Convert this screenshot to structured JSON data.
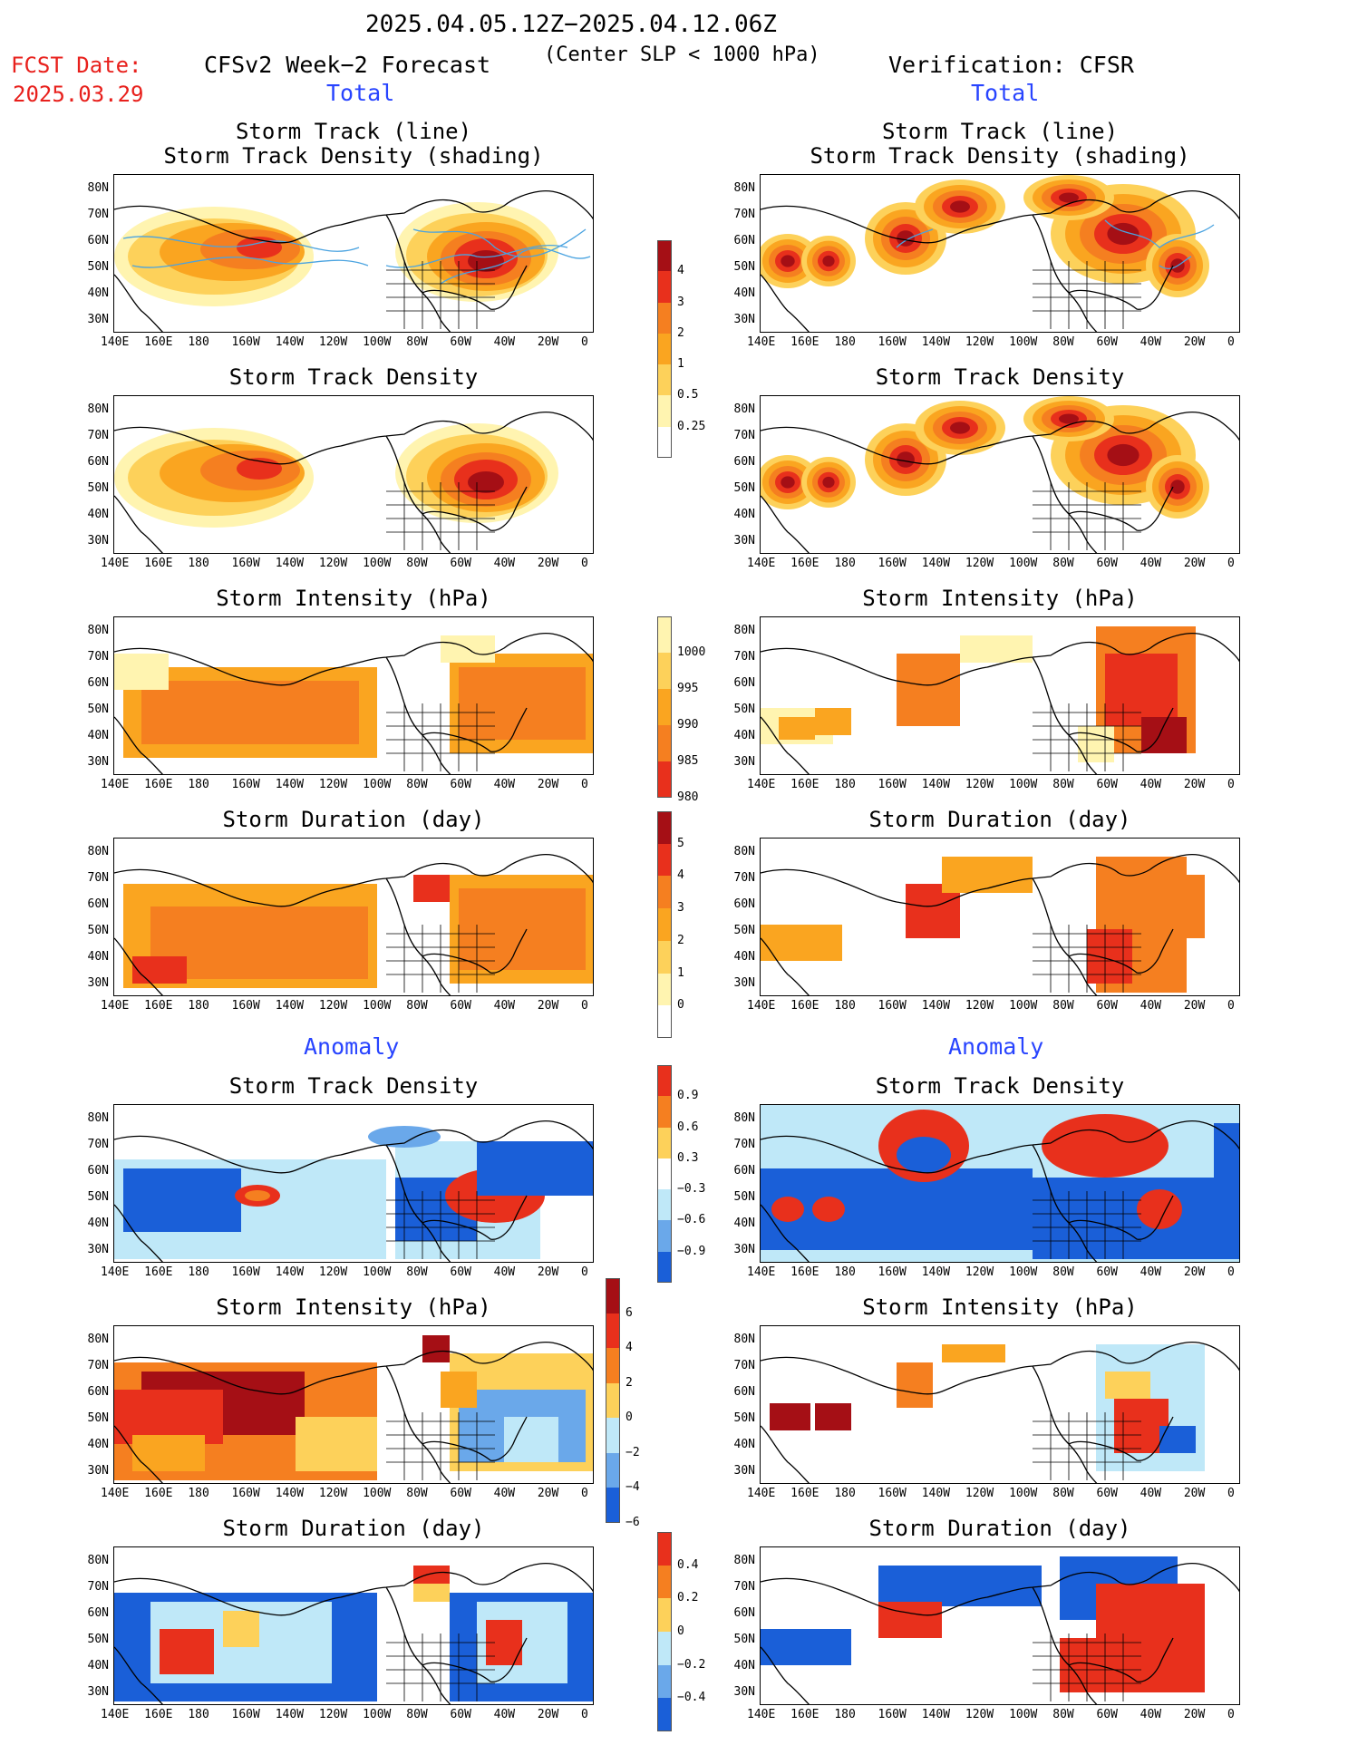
{
  "header": {
    "period": "2025.04.05.12Z−2025.04.12.06Z",
    "criterion": "(Center SLP < 1000 hPa)",
    "fcst_label": "FCST Date:",
    "fcst_date": "2025.03.29",
    "left_title": "CFSv2 Week−2 Forecast",
    "right_title": "Verification: CFSR",
    "total_label": "Total",
    "anomaly_label": "Anomaly"
  },
  "panel_titles": {
    "track": [
      "Storm Track (line)",
      "Storm Track Density (shading)"
    ],
    "density": "Storm Track Density",
    "intensity": "Storm Intensity (hPa)",
    "duration": "Storm Duration (day)"
  },
  "axes": {
    "lat_labels": [
      "80N",
      "70N",
      "60N",
      "50N",
      "40N",
      "30N"
    ],
    "lon_labels": [
      "140E",
      "160E",
      "180",
      "160W",
      "140W",
      "120W",
      "100W",
      "80W",
      "60W",
      "40W",
      "20W",
      "0"
    ]
  },
  "colorbars": {
    "density_total": [
      "4",
      "3",
      "2",
      "1",
      "0.5",
      "0.25"
    ],
    "intensity_total": [
      "1000",
      "995",
      "990",
      "985",
      "980"
    ],
    "duration_total": [
      "5",
      "4",
      "3",
      "2",
      "1",
      "0"
    ],
    "density_anom": [
      "0.9",
      "0.6",
      "0.3",
      "−0.3",
      "−0.6",
      "−0.9"
    ],
    "intensity_anom": [
      "6",
      "4",
      "2",
      "0",
      "−2",
      "−4",
      "−6"
    ],
    "duration_anom": [
      "0.4",
      "0.2",
      "0",
      "−0.2",
      "−0.4"
    ]
  },
  "colors": {
    "dark_red": "#a50f15",
    "red": "#e8301c",
    "orange": "#f57f20",
    "light_orange": "#faa520",
    "yellow": "#fdd15a",
    "pale_yellow": "#fff4b0",
    "light_blue": "#bfe8f8",
    "mid_blue": "#6aa8ea",
    "blue": "#1a5fd8",
    "track_line": "#4aa3e0"
  }
}
